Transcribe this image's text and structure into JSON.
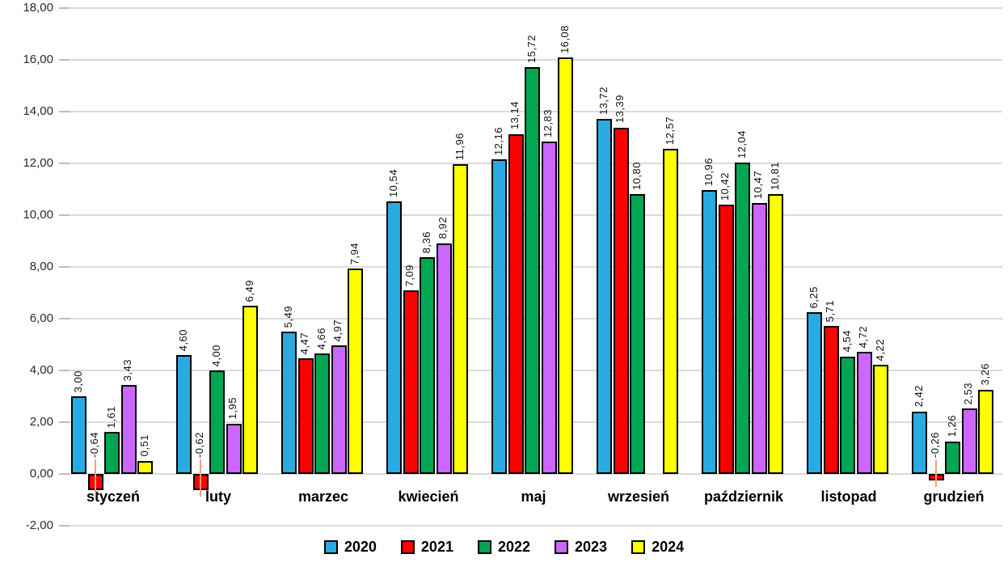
{
  "chart_data": {
    "type": "bar",
    "title": "",
    "xlabel": "",
    "ylabel": "",
    "categories": [
      "styczeń",
      "luty",
      "marzec",
      "kwiecień",
      "maj",
      "wrzesień",
      "październik",
      "listopad",
      "grudzień"
    ],
    "series": [
      {
        "name": "2020",
        "color": "#29ABE2",
        "values": [
          3.0,
          4.6,
          5.49,
          10.54,
          12.16,
          13.72,
          10.96,
          6.25,
          2.42
        ]
      },
      {
        "name": "2021",
        "color": "#FF0000",
        "values": [
          -0.64,
          -0.62,
          4.47,
          7.09,
          13.14,
          13.39,
          10.42,
          5.71,
          -0.26
        ]
      },
      {
        "name": "2022",
        "color": "#00A651",
        "values": [
          1.61,
          4.0,
          4.66,
          8.36,
          15.72,
          10.8,
          12.04,
          4.54,
          1.26
        ]
      },
      {
        "name": "2023",
        "color": "#CC66FF",
        "values": [
          3.43,
          1.95,
          4.97,
          8.92,
          12.83,
          null,
          10.47,
          4.72,
          2.53
        ]
      },
      {
        "name": "2024",
        "color": "#FFFF00",
        "values": [
          0.51,
          6.49,
          7.94,
          11.96,
          16.08,
          12.57,
          10.81,
          4.22,
          3.26
        ]
      }
    ],
    "y_axis": {
      "min": -2,
      "max": 18,
      "step": 2,
      "tick_labels": [
        "-2,00",
        "0,00",
        "2,00",
        "4,00",
        "6,00",
        "8,00",
        "10,00",
        "12,00",
        "14,00",
        "16,00",
        "18,00"
      ]
    },
    "data_labels": {
      "visible": true,
      "rotation": "vertical",
      "decimal_separator": ",",
      "decimals": 2
    },
    "legend": {
      "position": "bottom",
      "entries": [
        "2020",
        "2021",
        "2022",
        "2023",
        "2024"
      ]
    },
    "grid": {
      "horizontal": true,
      "color": "#DADADA"
    },
    "styling": {
      "bar_outline_color": "#000000",
      "negative_label_leader_color": "#F7A173",
      "background": "#FFFFFF",
      "axis_text_color": "#2B2B2B"
    }
  }
}
